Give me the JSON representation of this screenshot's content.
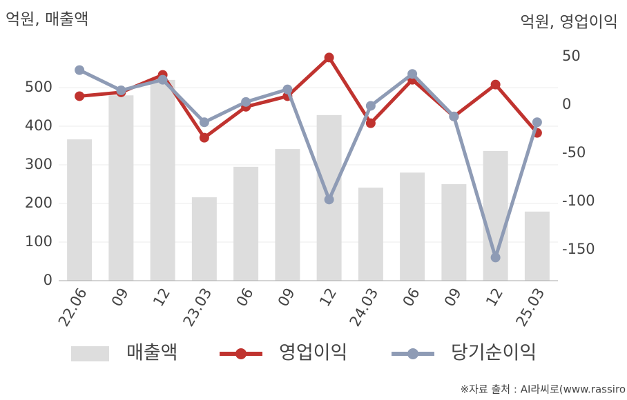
{
  "chart_data": {
    "type": "bar",
    "y_axis_label": "억원, 매출액",
    "y2_axis_label": "억원, 영업이익",
    "categories": [
      "22.06",
      "09",
      "12",
      "23.03",
      "06",
      "09",
      "12",
      "24.03",
      "06",
      "09",
      "12",
      "25.03"
    ],
    "series": [
      {
        "name": "매출액",
        "type": "bar",
        "color": "#dddddd",
        "values": [
          366,
          480,
          520,
          216,
          295,
          341,
          429,
          241,
          280,
          250,
          336,
          179
        ]
      },
      {
        "name": "영업이익",
        "type": "line",
        "axis": "y2",
        "color": "#c0332f",
        "values": [
          9,
          13,
          31,
          -34,
          -2,
          9,
          49,
          -19,
          26,
          -12,
          21,
          -29
        ]
      },
      {
        "name": "당기순이익",
        "type": "line",
        "axis": "y2",
        "color": "#8e9bb5",
        "values": [
          36,
          15,
          26,
          -18,
          3,
          16,
          -98,
          -1,
          32,
          -12,
          -158,
          -18
        ]
      }
    ],
    "ylim": [
      0,
      593
    ],
    "yticks": [
      0,
      100,
      200,
      300,
      400,
      500
    ],
    "y2lim": [
      -182,
      55
    ],
    "y2ticks": [
      -150,
      -100,
      -50,
      0,
      50
    ],
    "grid": true,
    "source": "※자료 출처 : AI라씨로(www.rassiro"
  }
}
